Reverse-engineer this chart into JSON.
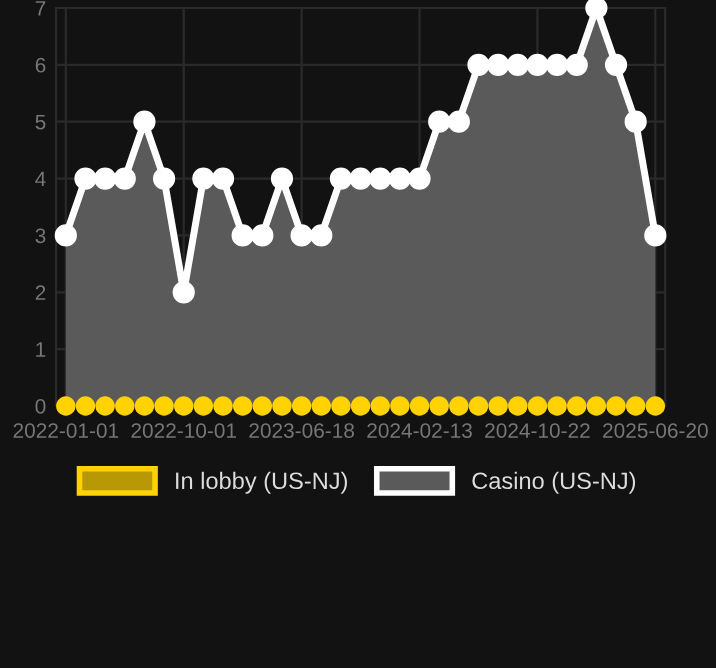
{
  "chart_data": {
    "type": "area",
    "categories": [
      "2022-01-01",
      null,
      null,
      null,
      null,
      null,
      "2022-10-01",
      null,
      null,
      null,
      null,
      null,
      "2023-06-18",
      null,
      null,
      null,
      null,
      null,
      "2024-02-13",
      null,
      null,
      null,
      null,
      null,
      "2024-10-22",
      null,
      null,
      null,
      null,
      null,
      "2025-06-20"
    ],
    "series": [
      {
        "name": "In lobby (US-NJ)",
        "color": "#ffd200",
        "type": "scatter",
        "values": [
          0,
          0,
          0,
          0,
          0,
          0,
          0,
          0,
          0,
          0,
          0,
          0,
          0,
          0,
          0,
          0,
          0,
          0,
          0,
          0,
          0,
          0,
          0,
          0,
          0,
          0,
          0,
          0,
          0,
          0,
          0
        ]
      },
      {
        "name": "Casino (US-NJ)",
        "color": "#ffffff",
        "values": [
          3,
          4,
          4,
          4,
          5,
          4,
          2,
          4,
          4,
          3,
          3,
          4,
          3,
          3,
          4,
          4,
          4,
          4,
          4,
          5,
          5,
          6,
          6,
          6,
          6,
          6,
          6,
          7,
          6,
          5,
          3
        ]
      }
    ],
    "ylim": [
      0,
      7
    ],
    "yticks": [
      0,
      1,
      2,
      3,
      4,
      5,
      6,
      7
    ],
    "grid": true,
    "legend": "bottom",
    "marker": "circle",
    "line_style": "solid"
  }
}
